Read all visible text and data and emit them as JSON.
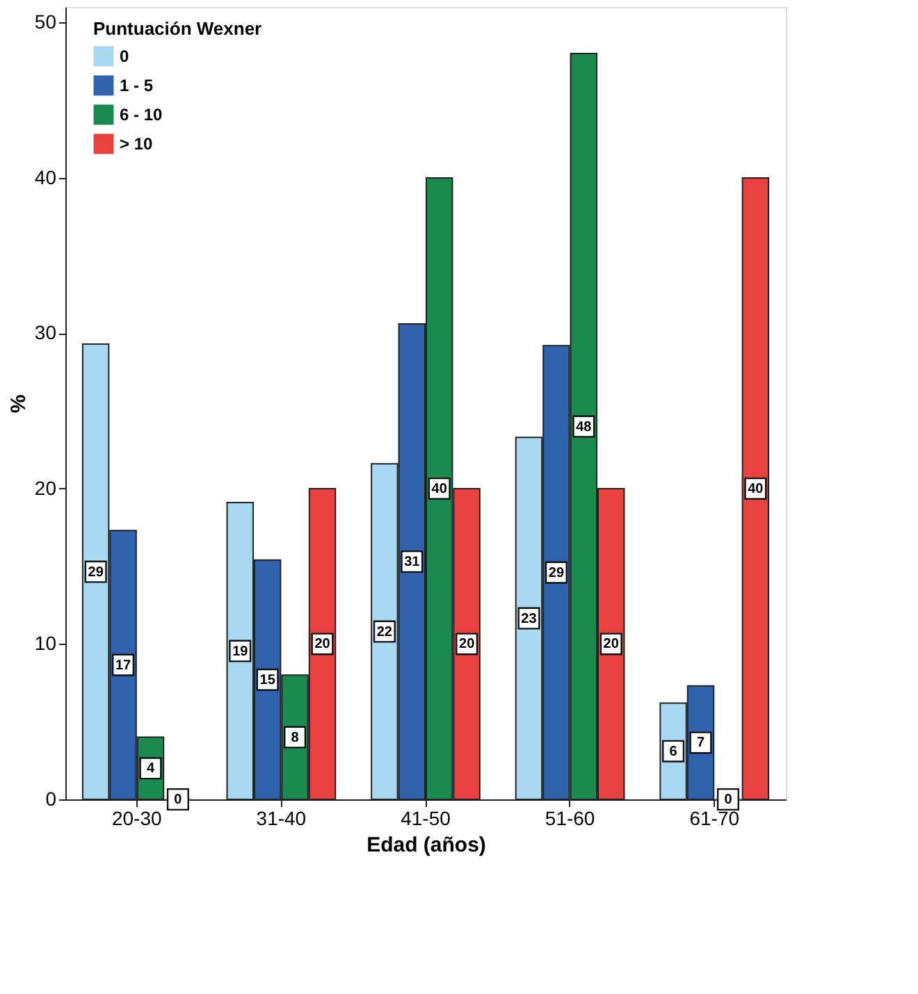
{
  "chart_data": {
    "type": "bar",
    "xlabel": "Edad (años)",
    "ylabel": "%",
    "legend_title": "Puntuación Wexner",
    "legend": "top left",
    "categories": [
      "20-30",
      "31-40",
      "41-50",
      "51-60",
      "61-70"
    ],
    "series": [
      {
        "name": "0",
        "color": "#a9d9f2",
        "values": [
          29.3,
          19.1,
          21.6,
          23.3,
          6.2
        ],
        "value_labels": [
          "29",
          "19",
          "22",
          "23",
          "6"
        ]
      },
      {
        "name": "1 - 5",
        "color": "#2f63ae",
        "values": [
          17.3,
          15.4,
          30.6,
          29.2,
          7.3
        ],
        "value_labels": [
          "17",
          "15",
          "31",
          "29",
          "7"
        ]
      },
      {
        "name": "6 - 10",
        "color": "#1b8a4f",
        "values": [
          4,
          8,
          40,
          48,
          0
        ],
        "value_labels": [
          "4",
          "8",
          "40",
          "48",
          "0"
        ]
      },
      {
        "name": "> 10",
        "color": "#e8413f",
        "values": [
          0,
          20,
          20,
          20,
          40
        ],
        "value_labels": [
          "0",
          "20",
          "20",
          "20",
          "40"
        ]
      }
    ],
    "ylim": [
      0,
      51
    ],
    "yticks": [
      0,
      10,
      20,
      30,
      40,
      50
    ],
    "grid": false
  }
}
